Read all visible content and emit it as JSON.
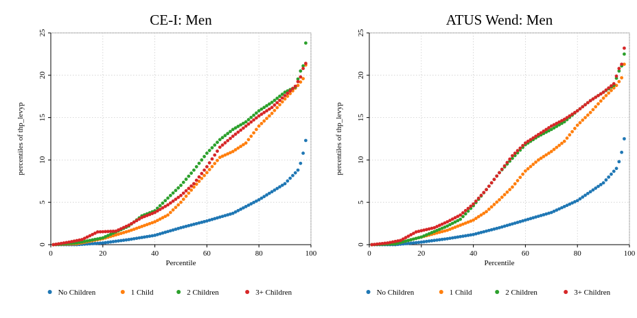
{
  "chart_data": [
    {
      "type": "scatter",
      "title": "CE-I: Men",
      "xlabel": "Percentile",
      "ylabel": "percentiles of thp_levyp",
      "xlim": [
        0,
        100
      ],
      "ylim": [
        0,
        25
      ],
      "xticks": [
        0,
        20,
        40,
        60,
        80,
        100
      ],
      "yticks": [
        0,
        5,
        10,
        15,
        20,
        25
      ],
      "grid": true,
      "legend_position": "bottom",
      "series": [
        {
          "name": "No Children",
          "color": "#1f77b4",
          "knots": [
            [
              1,
              0
            ],
            [
              10,
              0
            ],
            [
              20,
              0.2
            ],
            [
              30,
              0.6
            ],
            [
              40,
              1.1
            ],
            [
              50,
              2.0
            ],
            [
              60,
              2.8
            ],
            [
              70,
              3.7
            ],
            [
              80,
              5.3
            ],
            [
              90,
              7.2
            ],
            [
              95,
              8.8
            ],
            [
              96,
              9.6
            ],
            [
              97,
              10.8
            ],
            [
              98,
              12.3
            ]
          ]
        },
        {
          "name": "1 Child",
          "color": "#ff7f0e",
          "knots": [
            [
              1,
              0
            ],
            [
              10,
              0.1
            ],
            [
              20,
              0.7
            ],
            [
              30,
              1.6
            ],
            [
              40,
              2.7
            ],
            [
              45,
              3.5
            ],
            [
              50,
              5.0
            ],
            [
              55,
              6.8
            ],
            [
              60,
              8.5
            ],
            [
              65,
              10.3
            ],
            [
              70,
              11.0
            ],
            [
              75,
              12.0
            ],
            [
              80,
              14.0
            ],
            [
              85,
              15.5
            ],
            [
              90,
              17.2
            ],
            [
              95,
              18.8
            ],
            [
              97,
              19.6
            ],
            [
              98,
              21.2
            ]
          ]
        },
        {
          "name": "2 Children",
          "color": "#2ca02c",
          "knots": [
            [
              1,
              0
            ],
            [
              10,
              0.2
            ],
            [
              20,
              0.8
            ],
            [
              30,
              2.2
            ],
            [
              35,
              3.4
            ],
            [
              40,
              4.0
            ],
            [
              45,
              5.5
            ],
            [
              50,
              7.0
            ],
            [
              55,
              8.8
            ],
            [
              60,
              10.8
            ],
            [
              65,
              12.4
            ],
            [
              70,
              13.6
            ],
            [
              75,
              14.5
            ],
            [
              80,
              15.8
            ],
            [
              85,
              16.8
            ],
            [
              90,
              18.0
            ],
            [
              94,
              18.6
            ],
            [
              96,
              20.5
            ],
            [
              97,
              21.1
            ],
            [
              98,
              23.8
            ]
          ]
        },
        {
          "name": "3+ Children",
          "color": "#d62728",
          "knots": [
            [
              1,
              0
            ],
            [
              7,
              0.3
            ],
            [
              12,
              0.6
            ],
            [
              18,
              1.5
            ],
            [
              25,
              1.6
            ],
            [
              30,
              2.3
            ],
            [
              35,
              3.2
            ],
            [
              40,
              3.8
            ],
            [
              45,
              4.7
            ],
            [
              50,
              5.8
            ],
            [
              55,
              7.2
            ],
            [
              60,
              9.2
            ],
            [
              65,
              11.5
            ],
            [
              70,
              12.8
            ],
            [
              75,
              14.0
            ],
            [
              80,
              15.2
            ],
            [
              85,
              16.2
            ],
            [
              90,
              17.6
            ],
            [
              94,
              18.7
            ],
            [
              96,
              19.8
            ],
            [
              97,
              20.8
            ],
            [
              98,
              21.4
            ]
          ]
        }
      ]
    },
    {
      "type": "scatter",
      "title": "ATUS Wend: Men",
      "xlabel": "Percentile",
      "ylabel": "percentiles of thp_levyp",
      "xlim": [
        0,
        100
      ],
      "ylim": [
        0,
        25
      ],
      "xticks": [
        0,
        20,
        40,
        60,
        80,
        100
      ],
      "yticks": [
        0,
        5,
        10,
        15,
        20,
        25
      ],
      "grid": true,
      "legend_position": "bottom",
      "series": [
        {
          "name": "No Children",
          "color": "#1f77b4",
          "knots": [
            [
              1,
              0
            ],
            [
              10,
              0
            ],
            [
              20,
              0.3
            ],
            [
              30,
              0.7
            ],
            [
              40,
              1.2
            ],
            [
              50,
              2.0
            ],
            [
              60,
              2.9
            ],
            [
              70,
              3.8
            ],
            [
              80,
              5.2
            ],
            [
              90,
              7.3
            ],
            [
              95,
              9.0
            ],
            [
              96,
              9.8
            ],
            [
              97,
              10.9
            ],
            [
              98,
              12.5
            ]
          ]
        },
        {
          "name": "1 Child",
          "color": "#ff7f0e",
          "knots": [
            [
              1,
              0
            ],
            [
              10,
              0.1
            ],
            [
              20,
              0.9
            ],
            [
              30,
              1.7
            ],
            [
              40,
              2.9
            ],
            [
              45,
              3.9
            ],
            [
              50,
              5.3
            ],
            [
              55,
              6.8
            ],
            [
              60,
              8.7
            ],
            [
              65,
              10.0
            ],
            [
              70,
              11.0
            ],
            [
              75,
              12.2
            ],
            [
              80,
              14.1
            ],
            [
              85,
              15.6
            ],
            [
              90,
              17.3
            ],
            [
              95,
              18.8
            ],
            [
              97,
              19.7
            ],
            [
              98,
              21.3
            ]
          ]
        },
        {
          "name": "2 Children",
          "color": "#2ca02c",
          "knots": [
            [
              1,
              0
            ],
            [
              10,
              0.1
            ],
            [
              20,
              0.9
            ],
            [
              30,
              2.2
            ],
            [
              35,
              3.0
            ],
            [
              40,
              4.6
            ],
            [
              45,
              6.5
            ],
            [
              50,
              8.5
            ],
            [
              55,
              10.2
            ],
            [
              60,
              11.8
            ],
            [
              65,
              12.8
            ],
            [
              70,
              13.6
            ],
            [
              75,
              14.5
            ],
            [
              80,
              15.8
            ],
            [
              85,
              17.0
            ],
            [
              90,
              18.0
            ],
            [
              94,
              18.8
            ],
            [
              96,
              20.5
            ],
            [
              97,
              21.1
            ],
            [
              98,
              22.5
            ]
          ]
        },
        {
          "name": "3+ Children",
          "color": "#d62728",
          "knots": [
            [
              1,
              0
            ],
            [
              7,
              0.2
            ],
            [
              12,
              0.5
            ],
            [
              18,
              1.5
            ],
            [
              25,
              2.0
            ],
            [
              30,
              2.7
            ],
            [
              35,
              3.5
            ],
            [
              40,
              4.8
            ],
            [
              45,
              6.5
            ],
            [
              50,
              8.5
            ],
            [
              55,
              10.5
            ],
            [
              60,
              12.0
            ],
            [
              65,
              13.0
            ],
            [
              70,
              14.0
            ],
            [
              75,
              14.8
            ],
            [
              80,
              15.8
            ],
            [
              85,
              17.0
            ],
            [
              90,
              18.0
            ],
            [
              94,
              19.0
            ],
            [
              96,
              20.8
            ],
            [
              97,
              21.3
            ],
            [
              98,
              23.2
            ]
          ]
        }
      ]
    }
  ]
}
